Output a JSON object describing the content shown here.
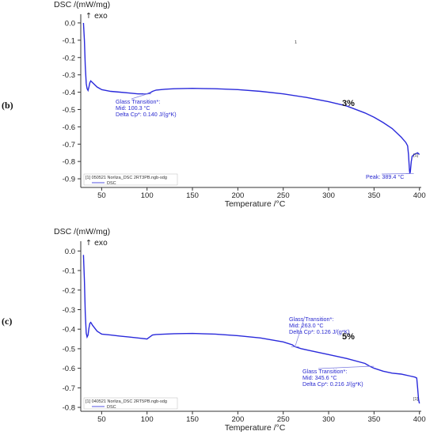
{
  "chart_data": [
    {
      "type": "line",
      "panel_label": "(b)",
      "ylabel": "DSC /(mW/mg)",
      "xlabel": "Temperature /°C",
      "exo_label": "↑ exo",
      "xlim": [
        27,
        402
      ],
      "ylim": [
        -0.95,
        0.05
      ],
      "x_ticks": [
        50,
        100,
        150,
        200,
        250,
        300,
        350,
        400
      ],
      "y_ticks": [
        0.0,
        -0.1,
        -0.2,
        -0.3,
        -0.4,
        -0.5,
        -0.6,
        -0.7,
        -0.8,
        -0.9
      ],
      "y_tick_labels": [
        "0.0",
        "-0.1",
        "-0.2",
        "-0.3",
        "-0.4",
        "-0.5",
        "-0.6",
        "-0.7",
        "-0.8",
        "-0.9"
      ],
      "series": [
        {
          "x": [
            30,
            31,
            32,
            33,
            34,
            35,
            36,
            37,
            38,
            40,
            45,
            50,
            60,
            70,
            80,
            90,
            95,
            100,
            103,
            106,
            110,
            120,
            130,
            150,
            175,
            200,
            225,
            250,
            275,
            300,
            320,
            340,
            350,
            360,
            370,
            380,
            385,
            387,
            388,
            389,
            389.4,
            390,
            391,
            392,
            394,
            396,
            398,
            400
          ],
          "y": [
            0.0,
            -0.1,
            -0.25,
            -0.35,
            -0.38,
            -0.39,
            -0.37,
            -0.345,
            -0.335,
            -0.345,
            -0.37,
            -0.385,
            -0.395,
            -0.4,
            -0.405,
            -0.41,
            -0.41,
            -0.41,
            -0.405,
            -0.395,
            -0.388,
            -0.383,
            -0.38,
            -0.378,
            -0.38,
            -0.385,
            -0.395,
            -0.41,
            -0.43,
            -0.455,
            -0.48,
            -0.52,
            -0.545,
            -0.575,
            -0.61,
            -0.66,
            -0.69,
            -0.71,
            -0.76,
            -0.85,
            -0.87,
            -0.86,
            -0.8,
            -0.77,
            -0.76,
            -0.755,
            -0.75,
            -0.76
          ]
        }
      ],
      "annotations": [
        {
          "lines": [
            "Glass Transition*:",
            "Mid:            100.3 °C",
            "Delta Cp*:      0.140 J/(g*K)"
          ],
          "x": 100.3,
          "y": -0.41
        },
        {
          "lines": [
            "Peak: 389.4 °C"
          ],
          "x": 389.4,
          "y": -0.87
        }
      ],
      "sample_label": "3%",
      "legend": [
        "[1]  050521 Norliza_DSC 2RT3PB.ngb-sdg",
        "DSC"
      ],
      "marker_labels": [
        "1",
        "[1]"
      ]
    },
    {
      "type": "line",
      "panel_label": "(c)",
      "ylabel": "DSC /(mW/mg)",
      "xlabel": "Temperature /°C",
      "exo_label": "↑ exo",
      "xlim": [
        27,
        402
      ],
      "ylim": [
        -0.82,
        0.05
      ],
      "x_ticks": [
        50,
        100,
        150,
        200,
        250,
        300,
        350,
        400
      ],
      "y_ticks": [
        0.0,
        -0.1,
        -0.2,
        -0.3,
        -0.4,
        -0.5,
        -0.6,
        -0.7,
        -0.8
      ],
      "y_tick_labels": [
        "0.0",
        "-0.1",
        "-0.2",
        "-0.3",
        "-0.4",
        "-0.5",
        "-0.6",
        "-0.7",
        "-0.8"
      ],
      "series": [
        {
          "x": [
            30,
            31,
            32,
            33,
            34,
            35,
            36,
            37,
            38,
            40,
            45,
            50,
            60,
            70,
            80,
            90,
            100,
            103,
            106,
            110,
            120,
            130,
            150,
            175,
            200,
            225,
            250,
            260,
            263,
            270,
            280,
            300,
            320,
            340,
            345.6,
            350,
            360,
            370,
            380,
            390,
            395,
            397,
            398,
            399,
            400
          ],
          "y": [
            -0.02,
            -0.15,
            -0.32,
            -0.42,
            -0.44,
            -0.43,
            -0.395,
            -0.37,
            -0.365,
            -0.38,
            -0.41,
            -0.425,
            -0.43,
            -0.435,
            -0.44,
            -0.445,
            -0.45,
            -0.44,
            -0.43,
            -0.427,
            -0.425,
            -0.423,
            -0.422,
            -0.425,
            -0.433,
            -0.445,
            -0.465,
            -0.48,
            -0.49,
            -0.5,
            -0.51,
            -0.53,
            -0.55,
            -0.575,
            -0.59,
            -0.6,
            -0.615,
            -0.625,
            -0.63,
            -0.64,
            -0.645,
            -0.65,
            -0.7,
            -0.76,
            -0.78
          ]
        }
      ],
      "annotations": [
        {
          "lines": [
            "Glass Transition*:",
            "Mid:            263.0 °C",
            "Delta Cp*:      0.126 J/(g*K)"
          ],
          "x": 263.0,
          "y": -0.49
        },
        {
          "lines": [
            "Glass Transition*:",
            "Mid:            345.6 °C",
            "Delta Cp*:      0.216 J/(g*K)"
          ],
          "x": 345.6,
          "y": -0.59
        }
      ],
      "sample_label": "5%",
      "legend": [
        "[1]  040521 Norliza_DSC 2RT5PB.ngb-sdg",
        "DSC"
      ],
      "marker_labels": [
        "[1]"
      ]
    }
  ]
}
